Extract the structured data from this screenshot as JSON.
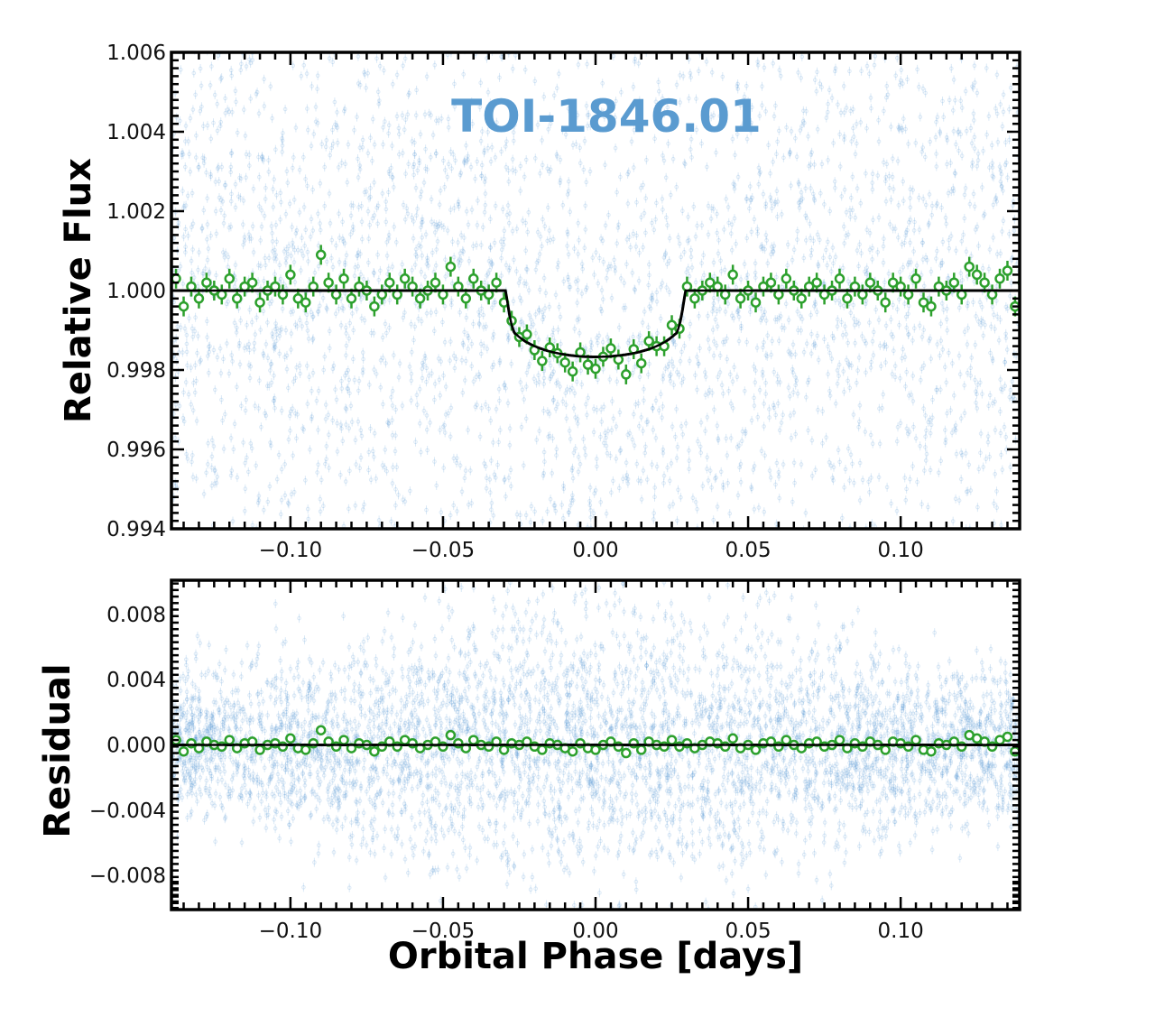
{
  "chart_data": [
    {
      "type": "scatter",
      "panel": "top",
      "title": "TOI-1846.01",
      "xlabel": "",
      "ylabel": "Relative Flux",
      "xlim": [
        -0.139,
        0.139
      ],
      "ylim": [
        0.994,
        1.006
      ],
      "xticks": [
        -0.1,
        -0.05,
        0.0,
        0.05,
        0.1
      ],
      "xtick_labels": [
        "−0.10",
        "−0.05",
        "0.00",
        "0.05",
        "0.10"
      ],
      "yticks": [
        0.994,
        0.996,
        0.998,
        1.0,
        1.002,
        1.004,
        1.006
      ],
      "ytick_labels": [
        "0.994",
        "0.996",
        "0.998",
        "1.000",
        "1.002",
        "1.004",
        "1.006"
      ],
      "grid": false,
      "series": [
        {
          "name": "raw photometry",
          "kind": "scatter",
          "color": "#5b9bd5",
          "approx_count": 3500,
          "scatter_std": 0.004
        },
        {
          "name": "binned data",
          "kind": "errorbar",
          "color": "#2ca02c"
        },
        {
          "name": "transit model",
          "kind": "line",
          "color": "#000000",
          "depth": 0.00167,
          "t14_days": 0.059,
          "t23_days": 0.052
        }
      ]
    },
    {
      "type": "scatter",
      "panel": "bottom",
      "xlabel": "Orbital Phase [days]",
      "ylabel": "Residual",
      "xlim": [
        -0.139,
        0.139
      ],
      "ylim": [
        -0.0101,
        0.0101
      ],
      "xticks": [
        -0.1,
        -0.05,
        0.0,
        0.05,
        0.1
      ],
      "xtick_labels": [
        "−0.10",
        "−0.05",
        "0.00",
        "0.05",
        "0.10"
      ],
      "yticks": [
        -0.008,
        -0.004,
        0.0,
        0.004,
        0.008
      ],
      "ytick_labels": [
        "−0.008",
        "−0.004",
        "0.000",
        "0.004",
        "0.008"
      ],
      "grid": false,
      "series": [
        {
          "name": "raw residuals",
          "kind": "scatter",
          "color": "#5b9bd5",
          "approx_count": 4500,
          "scatter_std": 0.0035
        },
        {
          "name": "binned residuals",
          "kind": "errorbar",
          "color": "#2ca02c"
        },
        {
          "name": "zero line",
          "kind": "line",
          "color": "#000000",
          "y": 0.0
        }
      ]
    }
  ],
  "binned": {
    "x_start": -0.1375,
    "x_step": 0.0025,
    "error": 0.00025,
    "residual_scale": 0.0001,
    "residuals": [
      3,
      -4,
      1,
      -2,
      2,
      0,
      -1,
      3,
      -2,
      1,
      2,
      -3,
      0,
      1,
      -1,
      4,
      -2,
      -3,
      1,
      9,
      2,
      -1,
      3,
      -2,
      1,
      0,
      -4,
      -1,
      2,
      -1,
      3,
      1,
      -2,
      0,
      2,
      -1,
      6,
      1,
      -2,
      3,
      0,
      -1,
      2,
      -3,
      1,
      0,
      2,
      -1,
      -3,
      1,
      0,
      -2,
      -4,
      1,
      -2,
      -3,
      0,
      2,
      -1,
      -5,
      1,
      -3,
      2,
      0,
      -1,
      3,
      -1,
      1,
      -2,
      0,
      2,
      1,
      -1,
      4,
      -2,
      0,
      -3,
      1,
      2,
      -1,
      3,
      0,
      -2,
      1,
      2,
      -1,
      0,
      3,
      -2,
      1,
      -1,
      2,
      0,
      -3,
      2,
      1,
      -1,
      3,
      -3,
      -4,
      1,
      0,
      2,
      -1,
      6,
      4,
      2,
      -1,
      3,
      5,
      -4,
      2,
      -3
    ]
  }
}
